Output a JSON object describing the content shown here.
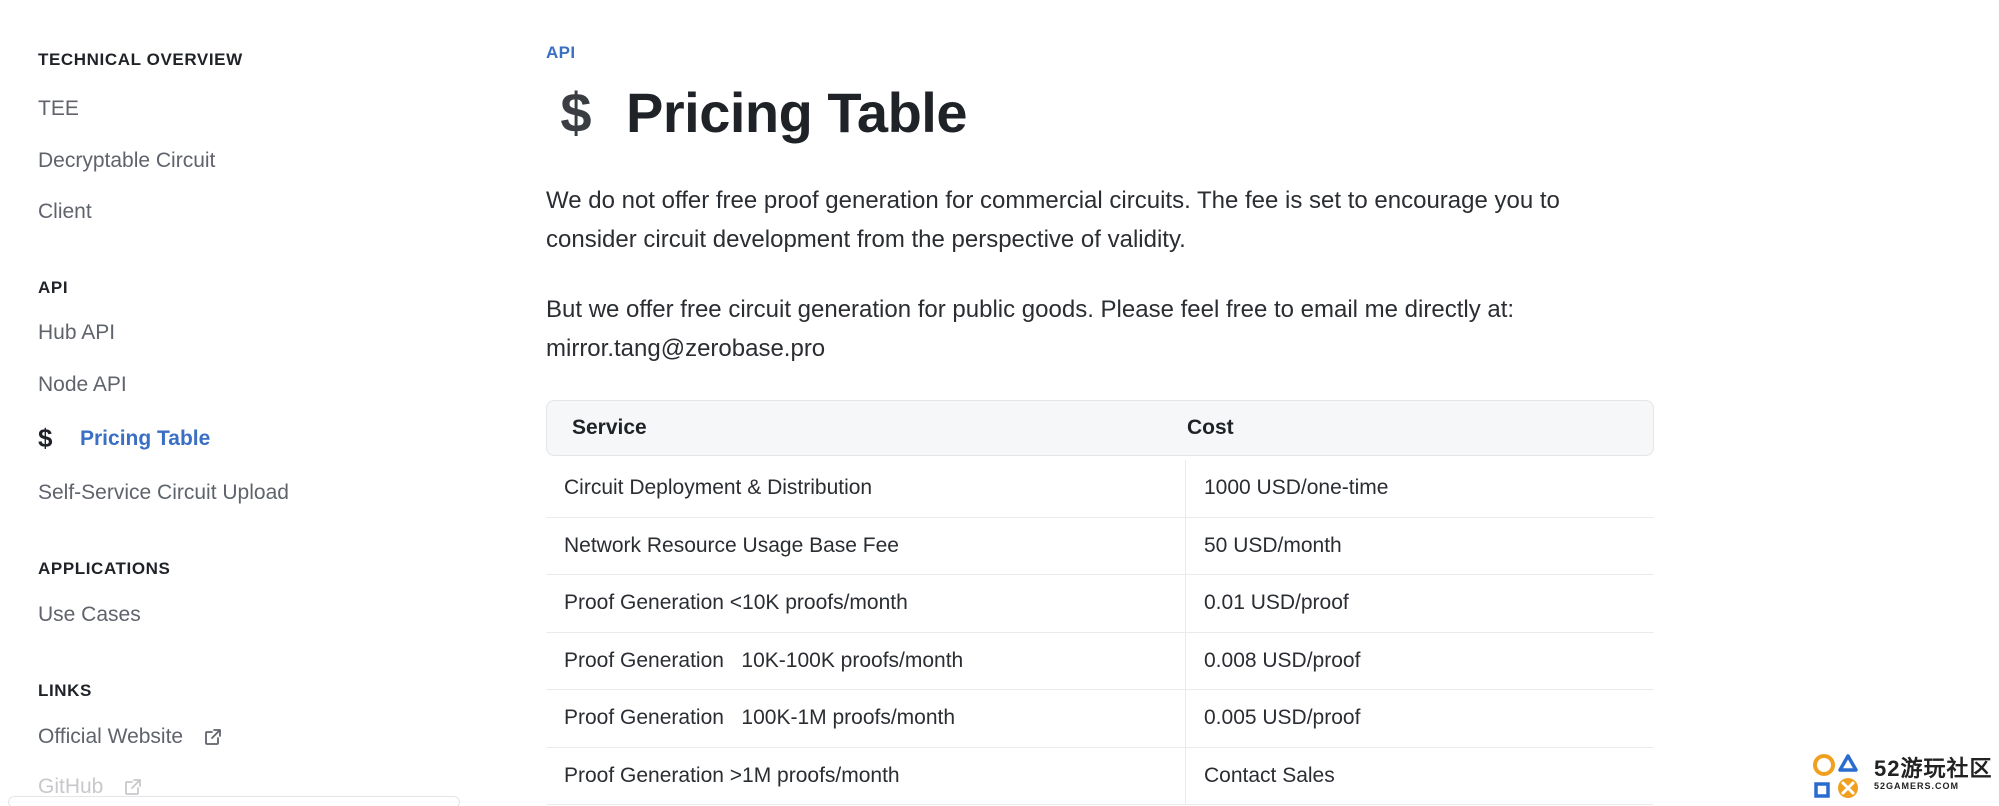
{
  "sidebar": {
    "sections": [
      {
        "title": "TECHNICAL OVERVIEW",
        "items": [
          "TEE",
          "Decryptable Circuit",
          "Client"
        ]
      },
      {
        "title": "API",
        "items": [
          "Hub API",
          "Node API",
          "Pricing Table",
          "Self-Service Circuit Upload"
        ]
      },
      {
        "title": "APPLICATIONS",
        "items": [
          "Use Cases"
        ]
      },
      {
        "title": "LINKS",
        "items": [
          "Official Website",
          "GitHub"
        ]
      }
    ],
    "active_item": "Pricing Table",
    "active_icon": "$"
  },
  "main": {
    "eyebrow": "API",
    "title_icon": "$",
    "title": "Pricing Table",
    "paragraph_1": "We do not offer free proof generation for commercial circuits. The fee is set to encourage you to consider circuit development from the perspective of validity.",
    "paragraph_2": "But we offer free circuit generation for public goods. Please feel free to email me directly at: mirror.tang@zerobase.pro"
  },
  "table": {
    "headers": [
      "Service",
      "Cost"
    ],
    "rows": [
      [
        "Circuit Deployment & Distribution",
        "1000 USD/one-time"
      ],
      [
        "Network Resource Usage Base Fee",
        "50 USD/month"
      ],
      [
        "Proof Generation <10K proofs/month",
        "0.01 USD/proof"
      ],
      [
        "Proof Generation   10K-100K proofs/month",
        "0.008 USD/proof"
      ],
      [
        "Proof Generation   100K-1M proofs/month",
        "0.005 USD/proof"
      ],
      [
        "Proof Generation >1M proofs/month",
        "Contact Sales"
      ]
    ]
  },
  "watermark": {
    "main": "52游玩社区",
    "sub": "52GAMERS.COM"
  },
  "colors": {
    "accent": "#3a6fc4",
    "text": "#1f2328",
    "muted": "#5f636b",
    "border": "#e3e5e8",
    "header_bg": "#f6f7f9"
  }
}
